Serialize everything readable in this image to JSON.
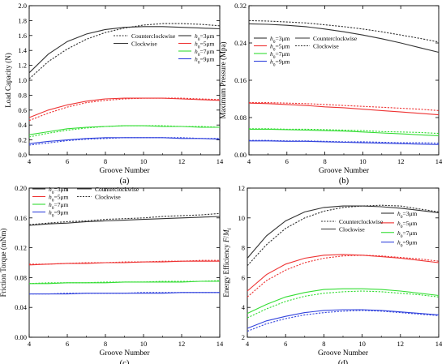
{
  "figure": {
    "background": "#ffffff"
  },
  "series_colors": {
    "3": "#333333",
    "5": "#ee3333",
    "7": "#33dd33",
    "9": "#3344dd"
  },
  "chart_data": [
    {
      "id": "a",
      "type": "line",
      "panel_label": "(a)",
      "xlabel": "Groove Number",
      "ylabel": "Load Capacity (N)",
      "xlim": [
        4,
        14
      ],
      "ylim": [
        0.0,
        2.0
      ],
      "xticks": [
        "4",
        "6",
        "8",
        "10",
        "12",
        "14"
      ],
      "yticks": [
        "0.0",
        "0.2",
        "0.4",
        "0.6",
        "0.8",
        "1.0",
        "1.2",
        "1.4",
        "1.6",
        "1.8",
        "2.0"
      ],
      "legend": {
        "placement": "center-right",
        "style_entries": [
          {
            "label": "Counterclockwise",
            "style": "dashed"
          },
          {
            "label": "Clockwise",
            "style": "solid"
          }
        ],
        "h0_entries": [
          {
            "sub": "0",
            "value": "=3μm",
            "key": "3"
          },
          {
            "sub": "0",
            "value": "=5μm",
            "key": "5"
          },
          {
            "sub": "0",
            "value": "=7μm",
            "key": "7"
          },
          {
            "sub": "0",
            "value": "=9μm",
            "key": "9"
          }
        ]
      },
      "x": [
        4,
        5,
        6,
        7,
        8,
        9,
        10,
        11,
        12,
        13,
        14
      ],
      "series": [
        {
          "key": "3",
          "style": "solid",
          "values": [
            1.1,
            1.35,
            1.52,
            1.62,
            1.68,
            1.71,
            1.72,
            1.72,
            1.71,
            1.7,
            1.69
          ]
        },
        {
          "key": "3",
          "style": "dashed",
          "values": [
            1.02,
            1.25,
            1.42,
            1.55,
            1.64,
            1.7,
            1.74,
            1.76,
            1.76,
            1.75,
            1.73
          ]
        },
        {
          "key": "5",
          "style": "solid",
          "values": [
            0.5,
            0.6,
            0.67,
            0.72,
            0.75,
            0.76,
            0.76,
            0.76,
            0.75,
            0.74,
            0.73
          ]
        },
        {
          "key": "5",
          "style": "dashed",
          "values": [
            0.46,
            0.56,
            0.64,
            0.7,
            0.73,
            0.75,
            0.76,
            0.76,
            0.76,
            0.75,
            0.74
          ]
        },
        {
          "key": "7",
          "style": "solid",
          "values": [
            0.27,
            0.31,
            0.35,
            0.37,
            0.38,
            0.39,
            0.39,
            0.38,
            0.38,
            0.37,
            0.37
          ]
        },
        {
          "key": "7",
          "style": "dashed",
          "values": [
            0.24,
            0.29,
            0.33,
            0.36,
            0.38,
            0.39,
            0.39,
            0.39,
            0.38,
            0.38,
            0.37
          ]
        },
        {
          "key": "9",
          "style": "solid",
          "values": [
            0.15,
            0.18,
            0.2,
            0.22,
            0.23,
            0.23,
            0.23,
            0.23,
            0.22,
            0.22,
            0.21
          ]
        },
        {
          "key": "9",
          "style": "dashed",
          "values": [
            0.13,
            0.16,
            0.19,
            0.21,
            0.22,
            0.23,
            0.23,
            0.23,
            0.23,
            0.22,
            0.22
          ]
        }
      ]
    },
    {
      "id": "b",
      "type": "line",
      "panel_label": "(b)",
      "xlabel": "Groove Number",
      "ylabel": "Maximum Pressure (Mpa)",
      "xlim": [
        4,
        14
      ],
      "ylim": [
        0.0,
        0.32
      ],
      "xticks": [
        "4",
        "6",
        "8",
        "10",
        "12",
        "14"
      ],
      "yticks": [
        "0.00",
        "0.08",
        "0.16",
        "0.24",
        "0.32"
      ],
      "legend": {
        "placement": "upper-center",
        "style_entries": [
          {
            "label": "Counterclockwise",
            "style": "solid"
          },
          {
            "label": "Clockwise",
            "style": "dashed"
          }
        ],
        "h0_entries": [
          {
            "sub": "0",
            "value": "=3μm",
            "key": "3"
          },
          {
            "sub": "0",
            "value": "=5μm",
            "key": "5"
          },
          {
            "sub": "0",
            "value": "=7μm",
            "key": "7"
          },
          {
            "sub": "0",
            "value": "=9μm",
            "key": "9"
          }
        ]
      },
      "x": [
        4,
        5,
        6,
        7,
        8,
        9,
        10,
        11,
        12,
        13,
        14
      ],
      "series": [
        {
          "key": "3",
          "style": "solid",
          "values": [
            0.281,
            0.28,
            0.278,
            0.275,
            0.27,
            0.264,
            0.257,
            0.249,
            0.24,
            0.23,
            0.22
          ]
        },
        {
          "key": "3",
          "style": "dashed",
          "values": [
            0.288,
            0.287,
            0.285,
            0.283,
            0.279,
            0.275,
            0.27,
            0.264,
            0.257,
            0.25,
            0.242
          ]
        },
        {
          "key": "5",
          "style": "solid",
          "values": [
            0.111,
            0.11,
            0.108,
            0.106,
            0.103,
            0.101,
            0.098,
            0.095,
            0.092,
            0.089,
            0.086
          ]
        },
        {
          "key": "5",
          "style": "dashed",
          "values": [
            0.112,
            0.112,
            0.111,
            0.11,
            0.108,
            0.106,
            0.104,
            0.102,
            0.1,
            0.098,
            0.095
          ]
        },
        {
          "key": "7",
          "style": "solid",
          "values": [
            0.055,
            0.055,
            0.054,
            0.053,
            0.052,
            0.051,
            0.049,
            0.047,
            0.045,
            0.043,
            0.041
          ]
        },
        {
          "key": "7",
          "style": "dashed",
          "values": [
            0.056,
            0.056,
            0.055,
            0.055,
            0.054,
            0.053,
            0.052,
            0.05,
            0.049,
            0.048,
            0.046
          ]
        },
        {
          "key": "9",
          "style": "solid",
          "values": [
            0.03,
            0.03,
            0.029,
            0.029,
            0.028,
            0.027,
            0.026,
            0.025,
            0.024,
            0.023,
            0.022
          ]
        },
        {
          "key": "9",
          "style": "dashed",
          "values": [
            0.031,
            0.031,
            0.03,
            0.03,
            0.029,
            0.028,
            0.028,
            0.027,
            0.026,
            0.026,
            0.025
          ]
        }
      ]
    },
    {
      "id": "c",
      "type": "line",
      "panel_label": "(c)",
      "xlabel": "Groove Number",
      "ylabel": "Friction Torque (mNm)",
      "xlim": [
        4,
        14
      ],
      "ylim": [
        0.0,
        0.2
      ],
      "xticks": [
        "4",
        "6",
        "8",
        "10",
        "12",
        "14"
      ],
      "yticks": [
        "0.00",
        "0.04",
        "0.08",
        "0.12",
        "0.16",
        "0.20"
      ],
      "legend": {
        "placement": "upper-left",
        "style_entries": [
          {
            "label": "Counterclockwise",
            "style": "solid"
          },
          {
            "label": "Clockwise",
            "style": "dashed"
          }
        ],
        "h0_entries": [
          {
            "sub": "0",
            "value": "=3μm",
            "key": "3"
          },
          {
            "sub": "0",
            "value": "=5μm",
            "key": "5"
          },
          {
            "sub": "0",
            "value": "=7μm",
            "key": "7"
          },
          {
            "sub": "0",
            "value": "=9μm",
            "key": "9"
          }
        ]
      },
      "x": [
        4,
        5,
        6,
        7,
        8,
        9,
        10,
        11,
        12,
        13,
        14
      ],
      "series": [
        {
          "key": "3",
          "style": "solid",
          "values": [
            0.15,
            0.152,
            0.153,
            0.155,
            0.156,
            0.157,
            0.158,
            0.159,
            0.16,
            0.161,
            0.162
          ]
        },
        {
          "key": "3",
          "style": "dashed",
          "values": [
            0.151,
            0.153,
            0.155,
            0.156,
            0.158,
            0.159,
            0.16,
            0.162,
            0.163,
            0.164,
            0.166
          ]
        },
        {
          "key": "5",
          "style": "solid",
          "values": [
            0.097,
            0.098,
            0.099,
            0.099,
            0.1,
            0.1,
            0.101,
            0.101,
            0.102,
            0.102,
            0.102
          ]
        },
        {
          "key": "5",
          "style": "dashed",
          "values": [
            0.098,
            0.098,
            0.099,
            0.1,
            0.1,
            0.101,
            0.101,
            0.102,
            0.102,
            0.103,
            0.103
          ]
        },
        {
          "key": "7",
          "style": "solid",
          "values": [
            0.072,
            0.072,
            0.073,
            0.073,
            0.073,
            0.074,
            0.074,
            0.074,
            0.074,
            0.075,
            0.075
          ]
        },
        {
          "key": "7",
          "style": "dashed",
          "values": [
            0.072,
            0.073,
            0.073,
            0.073,
            0.074,
            0.074,
            0.074,
            0.075,
            0.075,
            0.075,
            0.076
          ]
        },
        {
          "key": "9",
          "style": "solid",
          "values": [
            0.058,
            0.058,
            0.058,
            0.059,
            0.059,
            0.059,
            0.059,
            0.059,
            0.06,
            0.06,
            0.06
          ]
        },
        {
          "key": "9",
          "style": "dashed",
          "values": [
            0.058,
            0.058,
            0.059,
            0.059,
            0.059,
            0.059,
            0.06,
            0.06,
            0.06,
            0.06,
            0.06
          ]
        }
      ]
    },
    {
      "id": "d",
      "type": "line",
      "panel_label": "(d)",
      "xlabel": "Groove Number",
      "ylabel_parts": [
        "Energy Efficiency ",
        "F",
        "/",
        "M",
        "f"
      ],
      "xlim": [
        4,
        14
      ],
      "ylim": [
        2,
        12
      ],
      "xticks": [
        "4",
        "6",
        "8",
        "10",
        "12",
        "14"
      ],
      "yticks": [
        "2",
        "4",
        "6",
        "8",
        "10",
        "12"
      ],
      "legend": {
        "placement": "center-right",
        "style_entries": [
          {
            "label": "Counterclockwise",
            "style": "dashed"
          },
          {
            "label": "Clockwise",
            "style": "solid"
          }
        ],
        "h0_entries": [
          {
            "sub": "0",
            "value": "=3μm",
            "key": "3"
          },
          {
            "sub": "0",
            "value": "=5μm",
            "key": "5"
          },
          {
            "sub": "0",
            "value": "=7μm",
            "key": "7"
          },
          {
            "sub": "0",
            "value": "=9μm",
            "key": "9"
          }
        ]
      },
      "x": [
        4,
        5,
        6,
        7,
        8,
        9,
        10,
        11,
        12,
        13,
        14
      ],
      "series": [
        {
          "key": "3",
          "style": "solid",
          "values": [
            7.3,
            8.8,
            9.8,
            10.4,
            10.7,
            10.8,
            10.8,
            10.75,
            10.65,
            10.5,
            10.35
          ]
        },
        {
          "key": "3",
          "style": "dashed",
          "values": [
            6.8,
            8.2,
            9.3,
            10.0,
            10.45,
            10.7,
            10.8,
            10.85,
            10.8,
            10.6,
            10.4
          ]
        },
        {
          "key": "5",
          "style": "solid",
          "values": [
            5.1,
            6.2,
            6.9,
            7.3,
            7.5,
            7.55,
            7.5,
            7.4,
            7.3,
            7.15,
            7.0
          ]
        },
        {
          "key": "5",
          "style": "dashed",
          "values": [
            4.7,
            5.8,
            6.5,
            7.0,
            7.3,
            7.45,
            7.5,
            7.45,
            7.35,
            7.25,
            7.1
          ]
        },
        {
          "key": "7",
          "style": "solid",
          "values": [
            3.6,
            4.2,
            4.7,
            5.0,
            5.2,
            5.25,
            5.25,
            5.2,
            5.1,
            4.95,
            4.8
          ]
        },
        {
          "key": "7",
          "style": "dashed",
          "values": [
            3.3,
            3.9,
            4.4,
            4.75,
            4.95,
            5.05,
            5.1,
            5.05,
            4.95,
            4.85,
            4.7
          ]
        },
        {
          "key": "9",
          "style": "solid",
          "values": [
            2.6,
            3.1,
            3.4,
            3.65,
            3.8,
            3.85,
            3.85,
            3.8,
            3.7,
            3.6,
            3.5
          ]
        },
        {
          "key": "9",
          "style": "dashed",
          "values": [
            2.4,
            2.9,
            3.25,
            3.5,
            3.65,
            3.75,
            3.8,
            3.75,
            3.65,
            3.55,
            3.45
          ]
        }
      ]
    }
  ]
}
